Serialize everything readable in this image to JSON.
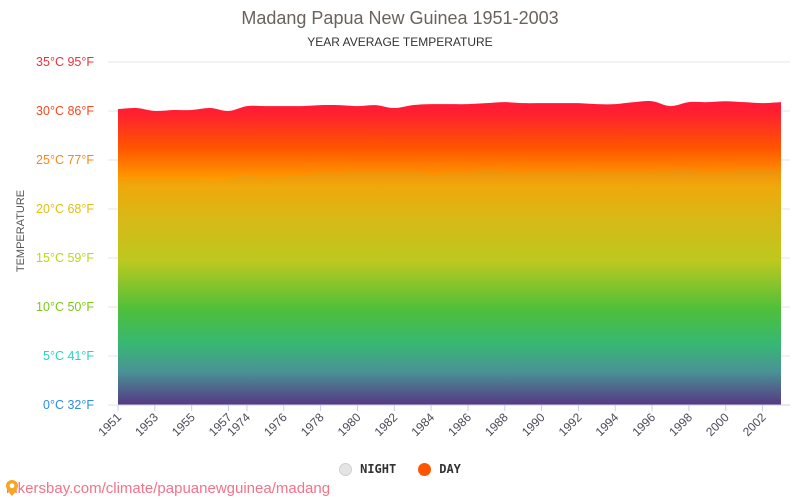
{
  "header": {
    "title": "Madang Papua New Guinea 1951-2003",
    "subtitle": "YEAR AVERAGE TEMPERATURE"
  },
  "yaxis": {
    "label": "TEMPERATURE",
    "ticks": [
      {
        "label": "35°C 95°F",
        "value": 35,
        "color": "#f0303a"
      },
      {
        "label": "30°C 86°F",
        "value": 30,
        "color": "#f24a20"
      },
      {
        "label": "25°C 77°F",
        "value": 25,
        "color": "#f5861a"
      },
      {
        "label": "20°C 68°F",
        "value": 20,
        "color": "#e0bf10"
      },
      {
        "label": "15°C 59°F",
        "value": 15,
        "color": "#b8d81c"
      },
      {
        "label": "10°C 50°F",
        "value": 10,
        "color": "#7cc81a"
      },
      {
        "label": "5°C 41°F",
        "value": 5,
        "color": "#26d4c4"
      },
      {
        "label": "0°C 32°F",
        "value": 0,
        "color": "#2e8ee0"
      }
    ]
  },
  "legend": {
    "night_label": "NIGHT",
    "day_label": "DAY"
  },
  "source": {
    "text": "hikersbay.com/climate/papuanewguinea/madang"
  },
  "chart_data": {
    "type": "area",
    "title": "Madang Papua New Guinea 1951-2003",
    "subtitle": "YEAR AVERAGE TEMPERATURE",
    "xlabel": "",
    "ylabel": "TEMPERATURE",
    "ylim": [
      0,
      35
    ],
    "x_tick_labels": [
      "1951",
      "1953",
      "1955",
      "1957",
      "1974",
      "1976",
      "1978",
      "1980",
      "1982",
      "1984",
      "1986",
      "1988",
      "1990",
      "1992",
      "1994",
      "1996",
      "1998",
      "2000",
      "2002"
    ],
    "categories": [
      "1951",
      "1952",
      "1953",
      "1954",
      "1955",
      "1956",
      "1957",
      "1974",
      "1975",
      "1976",
      "1977",
      "1978",
      "1979",
      "1980",
      "1981",
      "1982",
      "1983",
      "1984",
      "1985",
      "1986",
      "1987",
      "1988",
      "1989",
      "1990",
      "1991",
      "1992",
      "1993",
      "1994",
      "1995",
      "1996",
      "1997",
      "1998",
      "1999",
      "2000",
      "2001",
      "2002",
      "2003"
    ],
    "series": [
      {
        "name": "DAY",
        "color": "#ff5500",
        "values": [
          30.2,
          30.3,
          30.0,
          30.1,
          30.1,
          30.3,
          30.0,
          30.5,
          30.5,
          30.5,
          30.5,
          30.6,
          30.6,
          30.5,
          30.6,
          30.3,
          30.6,
          30.7,
          30.7,
          30.7,
          30.8,
          30.9,
          30.8,
          30.8,
          30.8,
          30.8,
          30.7,
          30.7,
          30.9,
          31.0,
          30.5,
          30.9,
          30.9,
          31.0,
          30.9,
          30.8,
          30.9
        ]
      },
      {
        "name": "NIGHT",
        "color": "#e4e4e4",
        "values": [
          23.0,
          23.1,
          23.1,
          23.0,
          23.0,
          22.9,
          23.0,
          23.5,
          23.2,
          23.3,
          23.4,
          23.6,
          23.7,
          23.8,
          23.8,
          23.8,
          23.9,
          23.5,
          23.6,
          23.7,
          24.0,
          23.9,
          23.7,
          23.8,
          23.8,
          23.9,
          23.9,
          23.8,
          23.8,
          23.9,
          23.9,
          24.1,
          23.6,
          23.8,
          24.0,
          24.0,
          23.9
        ]
      }
    ],
    "grid": true,
    "legend_position": "bottom"
  }
}
